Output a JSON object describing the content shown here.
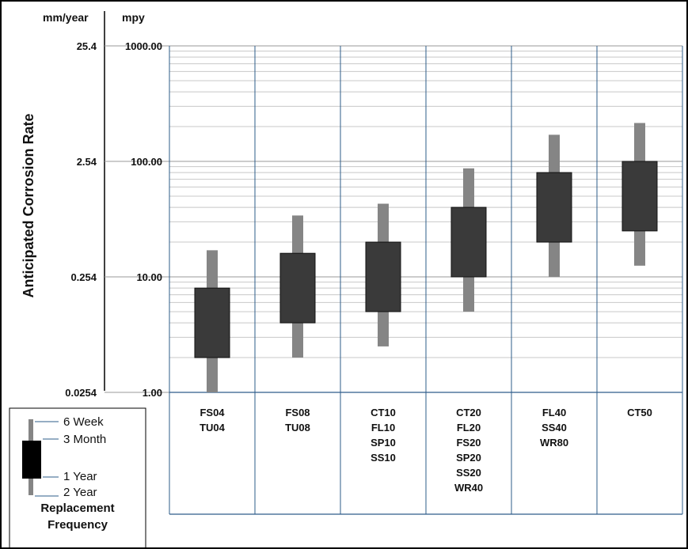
{
  "header": {
    "left_unit": "mm/year",
    "right_unit": "mpy"
  },
  "chart_data": {
    "type": "box",
    "ylabel": "Anticipated Corrosion Rate",
    "yscale": "log",
    "ylim": [
      1,
      1000
    ],
    "y_ticks_mpy": [
      "1000.00",
      "100.00",
      "10.00",
      "1.00"
    ],
    "y_ticks_mm_year": [
      "25.4",
      "2.54",
      "0.254",
      "0.0254"
    ],
    "grid": "minor-log-horizontal",
    "categories": [
      [
        "FS04",
        "TU04"
      ],
      [
        "FS08",
        "TU08"
      ],
      [
        "CT10",
        "FL10",
        "SP10",
        "SS10"
      ],
      [
        "CT20",
        "FL20",
        "FS20",
        "SP20",
        "SS20",
        "WR40"
      ],
      [
        "FL40",
        "SS40",
        "WR80"
      ],
      [
        "CT50"
      ]
    ],
    "ranges": [
      {
        "whisker_low": 1.0,
        "box_low": 2.0,
        "box_high": 8.0,
        "whisker_high": 17.0
      },
      {
        "whisker_low": 2.0,
        "box_low": 4.0,
        "box_high": 16.0,
        "whisker_high": 34.0
      },
      {
        "whisker_low": 2.5,
        "box_low": 5.0,
        "box_high": 20.0,
        "whisker_high": 43.0
      },
      {
        "whisker_low": 5.0,
        "box_low": 10.0,
        "box_high": 40.0,
        "whisker_high": 87.0
      },
      {
        "whisker_low": 10.0,
        "box_low": 20.0,
        "box_high": 80.0,
        "whisker_high": 170.0
      },
      {
        "whisker_low": 12.5,
        "box_low": 25.0,
        "box_high": 100.0,
        "whisker_high": 215.0
      }
    ],
    "colors": {
      "box": "#3a3a3a",
      "whisker": "#858585",
      "divider": "#2e5c8a",
      "grid": "#c8c8c8"
    }
  },
  "legend": {
    "items": [
      "6 Week",
      "3 Month",
      "1 Year",
      "2 Year"
    ],
    "title_line1": "Replacement",
    "title_line2": "Frequency"
  }
}
